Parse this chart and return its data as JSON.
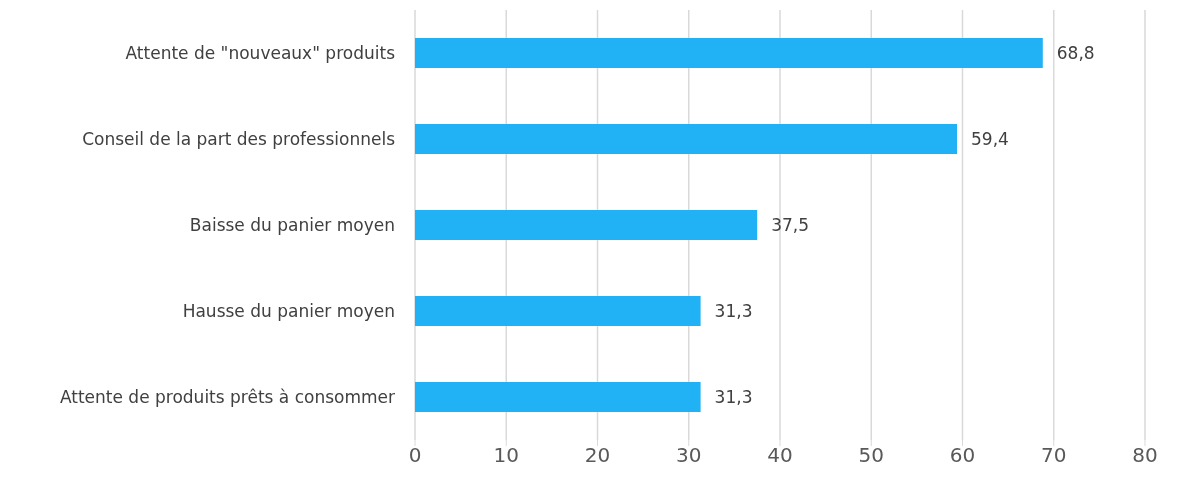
{
  "chart_data": {
    "type": "bar",
    "orientation": "horizontal",
    "categories": [
      "Attente de \"nouveaux\" produits",
      "Conseil de la part des professionnels",
      "Baisse du panier moyen",
      "Hausse du panier moyen",
      "Attente de produits prêts à consommer"
    ],
    "values": [
      68.8,
      59.4,
      37.5,
      31.3,
      31.3
    ],
    "value_labels": [
      "68,8",
      "59,4",
      "37,5",
      "31,3",
      "31,3"
    ],
    "color": "#21b1f5",
    "xlim": [
      0,
      80
    ],
    "xticks": [
      0,
      10,
      20,
      30,
      40,
      50,
      60,
      70,
      80
    ],
    "grid": "x",
    "legend": false
  }
}
